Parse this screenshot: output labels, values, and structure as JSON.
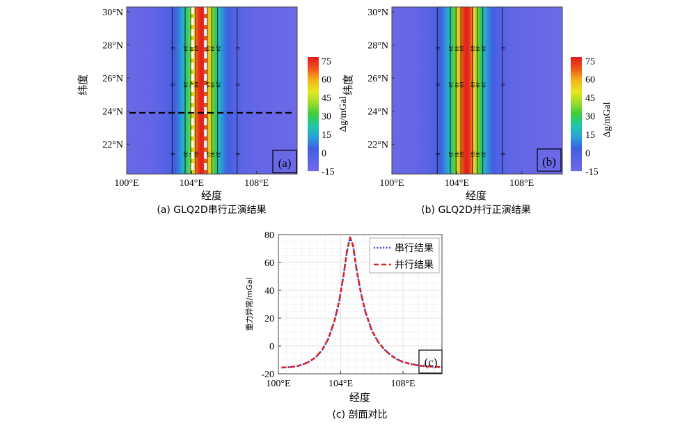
{
  "colors": {
    "background": "#ffffff",
    "series_serial": "#3344dd",
    "series_parallel": "#dd2222",
    "profile_line": "#000000",
    "source_line": "#ffffff"
  },
  "colormap": [
    "#6f6ae6",
    "#5a63e6",
    "#3f5fe0",
    "#2aa0d8",
    "#1fc8a8",
    "#3ccc3c",
    "#9fdb2a",
    "#e6e61e",
    "#f5b21a",
    "#f0521c",
    "#e01e1e"
  ],
  "chart_data": [
    {
      "id": "a",
      "type": "heatmap",
      "panel_tag": "(a)",
      "caption": "(a) GLQ2D串行正演结果",
      "title": "",
      "xlabel": "经度",
      "ylabel": "纬度",
      "xlim": [
        100,
        110.5
      ],
      "ylim": [
        20.2,
        30.3
      ],
      "x_ticks": [
        100,
        104,
        108
      ],
      "x_tick_labels": [
        "100°E",
        "104°E",
        "108°E"
      ],
      "y_ticks": [
        22,
        24,
        26,
        28,
        30
      ],
      "y_tick_labels": [
        "22°N",
        "24°N",
        "26°N",
        "28°N",
        "30°N"
      ],
      "field": {
        "center_lon": 104.6,
        "peak": 78,
        "base": -15,
        "half_width_deg": 0.8
      },
      "contours": [
        {
          "level": 0,
          "lon_west": 102.8,
          "lon_east": 106.8,
          "label": "0"
        },
        {
          "level": 20,
          "lon_west": 103.6,
          "lon_east": 105.6,
          "label": "20"
        },
        {
          "level": 40,
          "lon_west": 103.95,
          "lon_east": 105.25,
          "label": "40"
        },
        {
          "level": 60,
          "lon_west": 104.25,
          "lon_east": 104.95,
          "label": "60"
        }
      ],
      "profile_line_lat": 23.9,
      "source_lines_lon": [
        104.05,
        104.85
      ],
      "colorbar": {
        "label": "Δg/mGal",
        "range": [
          -15,
          78
        ],
        "ticks": [
          75,
          60,
          45,
          30,
          15,
          0,
          -15
        ],
        "tick_labels": [
          "75",
          "60",
          "45",
          "30",
          "15",
          "0",
          "-15"
        ]
      }
    },
    {
      "id": "b",
      "type": "heatmap",
      "panel_tag": "(b)",
      "caption": "(b) GLQ2D并行正演结果",
      "title": "",
      "xlabel": "经度",
      "ylabel": "纬度",
      "xlim": [
        100,
        110.5
      ],
      "ylim": [
        20.2,
        30.3
      ],
      "x_ticks": [
        100,
        104,
        108
      ],
      "x_tick_labels": [
        "100°E",
        "104°E",
        "108°E"
      ],
      "y_ticks": [
        22,
        24,
        26,
        28,
        30
      ],
      "y_tick_labels": [
        "22°N",
        "24°N",
        "26°N",
        "28°N",
        "30°N"
      ],
      "field": {
        "center_lon": 104.6,
        "peak": 78,
        "base": -15,
        "half_width_deg": 0.8
      },
      "contours": [
        {
          "level": 0,
          "lon_west": 102.8,
          "lon_east": 106.8,
          "label": "0"
        },
        {
          "level": 20,
          "lon_west": 103.6,
          "lon_east": 105.6,
          "label": "20"
        },
        {
          "level": 40,
          "lon_west": 103.95,
          "lon_east": 105.25,
          "label": "40"
        },
        {
          "level": 60,
          "lon_west": 104.25,
          "lon_east": 104.95,
          "label": "60"
        }
      ],
      "colorbar": {
        "label": "Δg/mGal",
        "range": [
          -15,
          78
        ],
        "ticks": [
          75,
          60,
          45,
          30,
          15,
          0,
          -15
        ],
        "tick_labels": [
          "75",
          "60",
          "45",
          "30",
          "15",
          "0",
          "-15"
        ]
      }
    },
    {
      "id": "c",
      "type": "line",
      "panel_tag": "(c)",
      "caption": "(c) 剖面对比",
      "title": "",
      "xlabel": "经度",
      "ylabel": "重力异常/mGal",
      "xlim": [
        100,
        110.5
      ],
      "ylim": [
        -20,
        80
      ],
      "x_ticks": [
        100,
        104,
        108
      ],
      "x_tick_labels": [
        "100°E",
        "104°E",
        "108°E"
      ],
      "y_ticks": [
        80,
        60,
        40,
        20,
        0,
        -20
      ],
      "y_tick_labels": [
        "80",
        "60",
        "40",
        "20",
        "0",
        "-20"
      ],
      "grid": true,
      "legend_position": "top-right",
      "x": [
        100.2,
        100.8,
        101.2,
        101.6,
        102.0,
        102.4,
        102.8,
        103.2,
        103.6,
        103.9,
        104.2,
        104.4,
        104.6,
        104.8,
        105.0,
        105.3,
        105.6,
        106.0,
        106.4,
        106.8,
        107.2,
        107.6,
        108.0,
        108.5,
        109.0,
        109.5,
        110.0,
        110.5
      ],
      "series": [
        {
          "name": "串行结果",
          "style": "dotted",
          "values": [
            -15.5,
            -15.2,
            -14.5,
            -13.2,
            -11.2,
            -8,
            -3,
            5,
            18,
            32,
            52,
            68,
            78,
            72,
            56,
            38,
            24,
            11,
            3,
            -2.5,
            -6.5,
            -9.5,
            -11.5,
            -13,
            -14,
            -14.6,
            -15,
            -15.2
          ]
        },
        {
          "name": "并行结果",
          "style": "dashed",
          "values": [
            -15.5,
            -15.2,
            -14.5,
            -13.2,
            -11.2,
            -8,
            -3,
            5,
            18,
            32,
            52,
            68,
            78,
            72,
            56,
            38,
            24,
            11,
            3,
            -2.5,
            -6.5,
            -9.5,
            -11.5,
            -13,
            -14,
            -14.6,
            -15,
            -15.2
          ]
        }
      ]
    }
  ]
}
